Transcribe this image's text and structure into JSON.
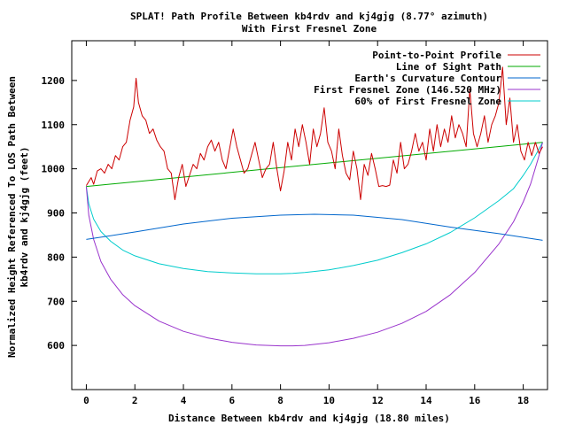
{
  "chart_data": {
    "type": "line",
    "title": "SPLAT! Path Profile Between kb4rdv and kj4gjg (8.77° azimuth)",
    "subtitle": "With First Fresnel Zone",
    "xlabel": "Distance Between kb4rdv and kj4gjg (18.80 miles)",
    "ylabel_lines": [
      "Normalized Height Referenced To LOS Path Between",
      "kb4rdv and kj4gjg (feet)"
    ],
    "xlim": [
      -0.6,
      19.0
    ],
    "ylim": [
      500,
      1290
    ],
    "xticks": [
      0,
      2,
      4,
      6,
      8,
      10,
      12,
      14,
      16,
      18
    ],
    "yticks": [
      600,
      700,
      800,
      900,
      1000,
      1100,
      1200
    ],
    "legend_position": "top-right",
    "series": [
      {
        "name": "Point-to-Point Profile",
        "color": "#cc0000",
        "x": [
          0,
          0.2,
          0.3,
          0.45,
          0.6,
          0.75,
          0.9,
          1.05,
          1.2,
          1.35,
          1.5,
          1.65,
          1.8,
          1.95,
          2.05,
          2.15,
          2.3,
          2.45,
          2.6,
          2.75,
          2.9,
          3.05,
          3.2,
          3.35,
          3.5,
          3.65,
          3.8,
          3.95,
          4.1,
          4.25,
          4.4,
          4.55,
          4.7,
          4.85,
          5.0,
          5.15,
          5.3,
          5.45,
          5.6,
          5.75,
          5.9,
          6.05,
          6.2,
          6.35,
          6.5,
          6.65,
          6.8,
          6.95,
          7.1,
          7.25,
          7.4,
          7.55,
          7.7,
          7.85,
          8.0,
          8.15,
          8.3,
          8.45,
          8.6,
          8.75,
          8.9,
          9.05,
          9.2,
          9.35,
          9.5,
          9.65,
          9.8,
          9.95,
          10.1,
          10.25,
          10.4,
          10.55,
          10.7,
          10.85,
          11.0,
          11.15,
          11.3,
          11.45,
          11.6,
          11.75,
          11.9,
          12.05,
          12.2,
          12.35,
          12.5,
          12.65,
          12.8,
          12.95,
          13.1,
          13.25,
          13.4,
          13.55,
          13.7,
          13.85,
          14.0,
          14.15,
          14.3,
          14.45,
          14.6,
          14.75,
          14.9,
          15.05,
          15.2,
          15.35,
          15.5,
          15.65,
          15.8,
          15.95,
          16.1,
          16.25,
          16.4,
          16.55,
          16.7,
          16.85,
          17.0,
          17.15,
          17.3,
          17.45,
          17.6,
          17.75,
          17.9,
          18.05,
          18.2,
          18.35,
          18.5,
          18.65,
          18.8
        ],
        "y": [
          962,
          980,
          965,
          995,
          1000,
          990,
          1010,
          1000,
          1030,
          1020,
          1050,
          1060,
          1110,
          1140,
          1205,
          1150,
          1120,
          1110,
          1080,
          1090,
          1065,
          1050,
          1040,
          1000,
          990,
          930,
          980,
          1010,
          960,
          985,
          1010,
          1000,
          1035,
          1020,
          1050,
          1065,
          1040,
          1060,
          1020,
          1000,
          1045,
          1090,
          1050,
          1020,
          990,
          1000,
          1030,
          1060,
          1020,
          980,
          1000,
          1010,
          1060,
          1000,
          950,
          995,
          1060,
          1020,
          1090,
          1050,
          1100,
          1060,
          1010,
          1090,
          1050,
          1080,
          1138,
          1060,
          1040,
          1000,
          1090,
          1030,
          990,
          975,
          1040,
          1000,
          930,
          1010,
          985,
          1035,
          1000,
          960,
          962,
          960,
          963,
          1020,
          990,
          1060,
          1000,
          1010,
          1040,
          1080,
          1040,
          1060,
          1020,
          1090,
          1040,
          1100,
          1050,
          1090,
          1060,
          1120,
          1070,
          1100,
          1080,
          1050,
          1180,
          1080,
          1050,
          1080,
          1120,
          1060,
          1100,
          1120,
          1150,
          1230,
          1100,
          1160,
          1060,
          1100,
          1040,
          1020,
          1060,
          1030,
          1060,
          1035,
          1050
        ]
      },
      {
        "name": "Line of Sight Path",
        "color": "#00aa00",
        "x": [
          0,
          18.8
        ],
        "y": [
          960,
          1060
        ]
      },
      {
        "name": "Earth's Curvature Contour",
        "color": "#0066cc",
        "x": [
          0,
          2,
          4,
          6,
          8,
          9.4,
          11,
          13,
          15,
          17,
          18.8
        ],
        "y": [
          840,
          857,
          875,
          888,
          895,
          897,
          895,
          885,
          868,
          853,
          838
        ]
      },
      {
        "name": "First Fresnel Zone (146.520 MHz)",
        "color": "#9933cc",
        "x": [
          0,
          0.1,
          0.3,
          0.6,
          1,
          1.5,
          2,
          3,
          4,
          5,
          6,
          7,
          8,
          8.5,
          9,
          10,
          11,
          12,
          13,
          14,
          15,
          16,
          17,
          17.6,
          18,
          18.3,
          18.6,
          18.8
        ],
        "y": [
          960,
          895,
          840,
          790,
          750,
          715,
          690,
          655,
          632,
          617,
          607,
          601,
          599,
          599,
          600,
          606,
          616,
          630,
          650,
          677,
          715,
          765,
          830,
          880,
          925,
          965,
          1020,
          1060
        ]
      },
      {
        "name": "60% of First Fresnel Zone",
        "color": "#00cccc",
        "x": [
          0,
          0.1,
          0.3,
          0.6,
          1,
          1.5,
          2,
          3,
          4,
          5,
          6,
          7,
          8,
          8.5,
          9,
          10,
          11,
          12,
          13,
          14,
          15,
          16,
          17,
          17.6,
          18,
          18.3,
          18.6,
          18.8
        ],
        "y": [
          960,
          921,
          886,
          858,
          836,
          816,
          803,
          785,
          774,
          767,
          764,
          762,
          762,
          763,
          765,
          771,
          781,
          793,
          810,
          830,
          856,
          889,
          928,
          955,
          985,
          1010,
          1040,
          1060
        ]
      }
    ]
  }
}
